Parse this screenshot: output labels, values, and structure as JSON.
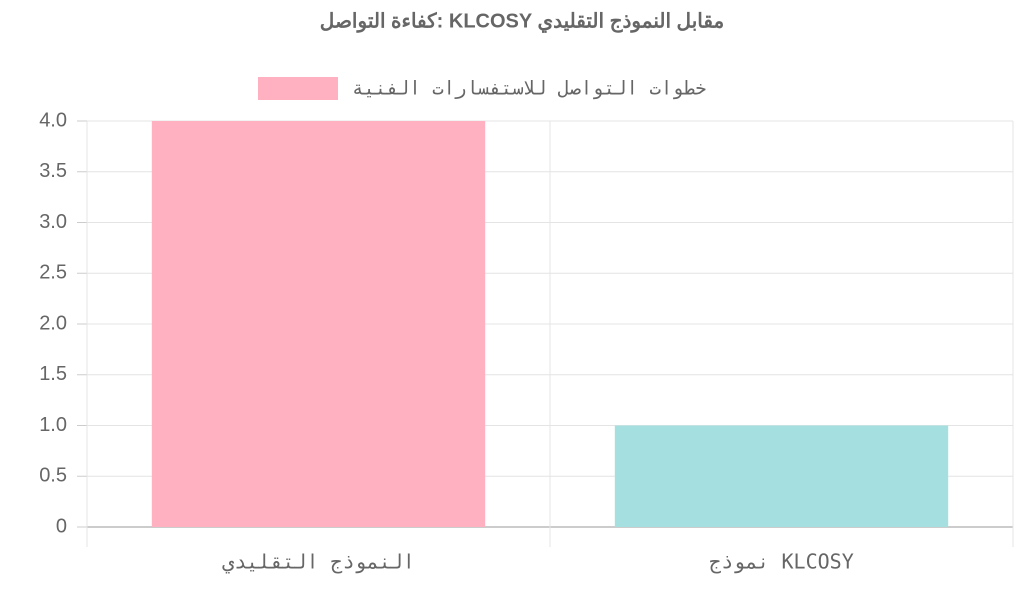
{
  "chart_data": {
    "type": "bar",
    "title": "كفاءة التواصل: KLCOSY مقابل النموذج التقليدي",
    "categories": [
      "النموذج التقليدي",
      "نموذج KLCOSY"
    ],
    "series": [
      {
        "name": "خطوات التواصل للاستفسارات الفنية",
        "colors": [
          "#ffb1c1",
          "#a5dfdf"
        ],
        "values": [
          4,
          1
        ]
      }
    ],
    "ylim": [
      0,
      4
    ],
    "yticks": [
      0,
      0.5,
      {
        "value": 1,
        "label": "1.0"
      },
      1.5,
      {
        "value": 2,
        "label": "2.0"
      },
      2.5,
      {
        "value": 3,
        "label": "3.0"
      },
      3.5,
      {
        "value": 4,
        "label": "4.0"
      }
    ],
    "grid": true,
    "legend": "top"
  }
}
